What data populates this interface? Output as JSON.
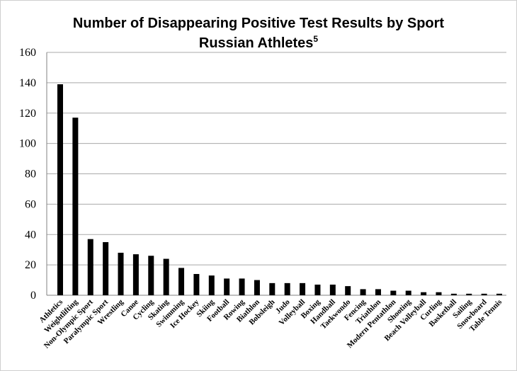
{
  "chart_data": {
    "type": "bar",
    "title": "Number of Disappearing Positive Test Results by Sport",
    "subtitle": "Russian Athletes",
    "subtitle_superscript": "5",
    "xlabel": "",
    "ylabel": "",
    "ylim": [
      0,
      160
    ],
    "yticks": [
      0,
      20,
      40,
      60,
      80,
      100,
      120,
      140,
      160
    ],
    "grid": true,
    "legend": "none",
    "bar_color": "#000000",
    "categories": [
      "Athletics",
      "Weightlifting",
      "Non-Olympic Sport",
      "Paralympic Sport",
      "Wrestling",
      "Canoe",
      "Cycling",
      "Skating",
      "Swimming",
      "Ice Hockey",
      "Skiing",
      "Football",
      "Rowing",
      "Biathlon",
      "Bobsleigh",
      "Judo",
      "Volleyball",
      "Boxing",
      "Handball",
      "Taekwondo",
      "Fencing",
      "Triathlon",
      "Modern Pentathlon",
      "Shooting",
      "Beach Volleyball",
      "Curling",
      "Basketball",
      "Sailing",
      "Snowboard",
      "Table Tennis"
    ],
    "values": [
      139,
      117,
      37,
      35,
      28,
      27,
      26,
      24,
      18,
      14,
      13,
      11,
      11,
      10,
      8,
      8,
      8,
      7,
      7,
      6,
      4,
      4,
      3,
      3,
      2,
      2,
      1,
      1,
      1,
      1
    ]
  }
}
